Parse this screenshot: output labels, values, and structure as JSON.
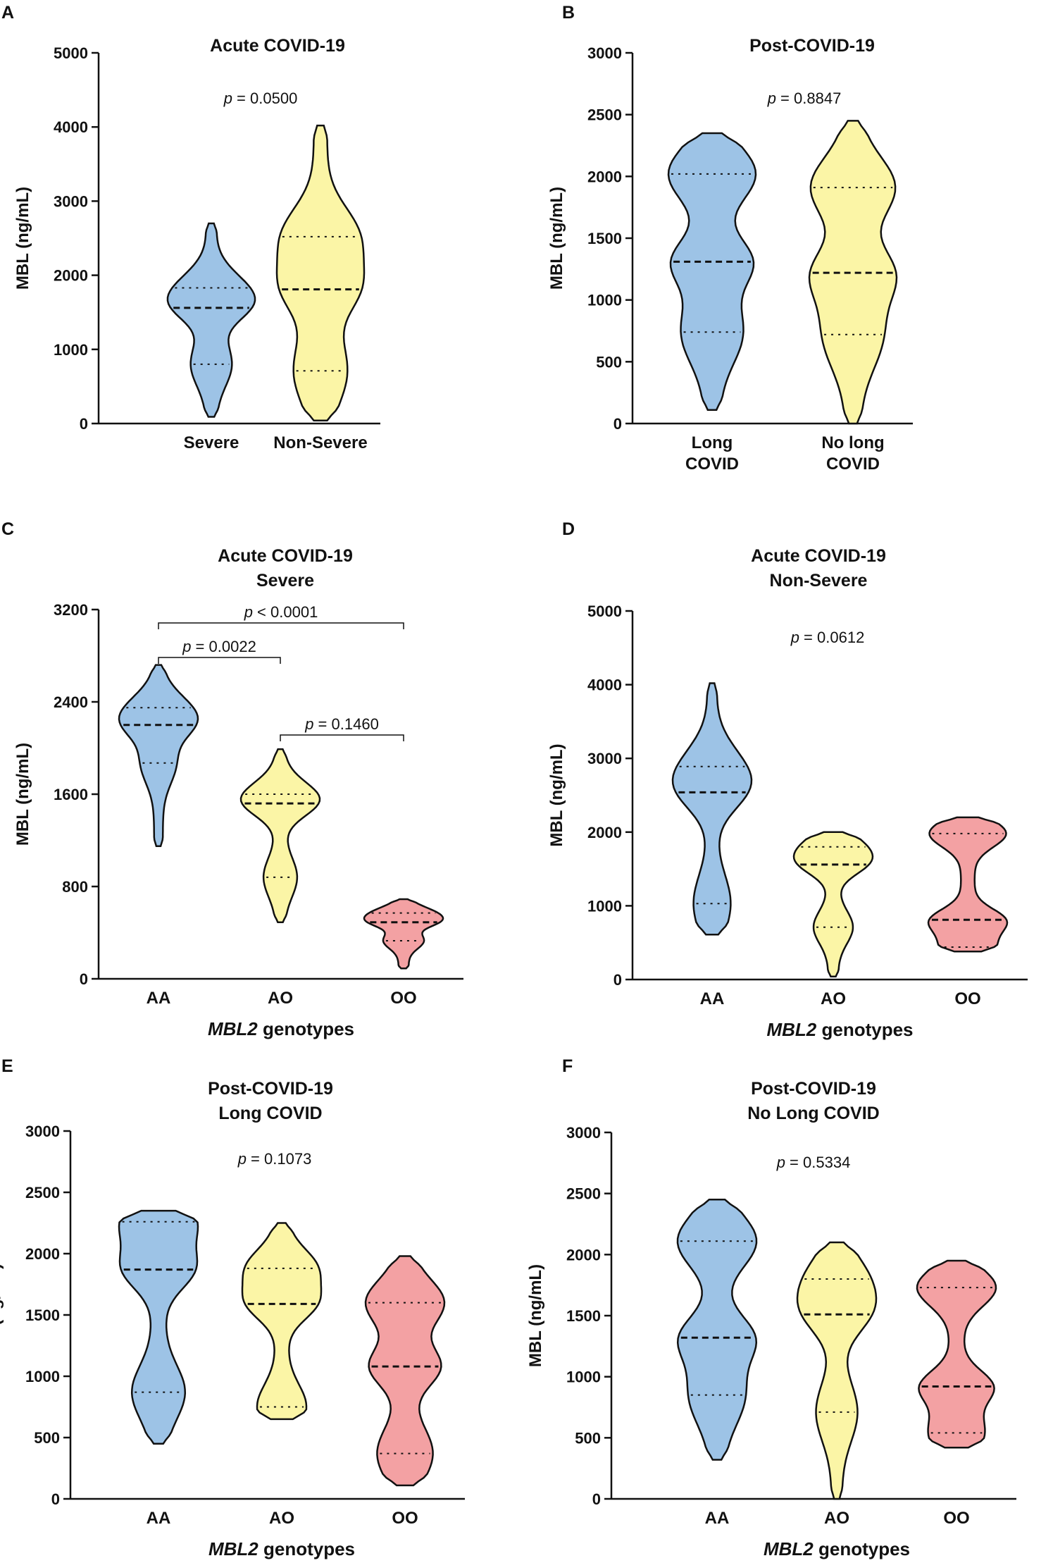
{
  "colors": {
    "blue": "#9dc3e6",
    "yellow": "#fbf5a6",
    "red": "#f3a1a3",
    "stroke": "#111111"
  },
  "chart_data": [
    {
      "type": "violin",
      "panel": "A",
      "title": "Acute COVID-19",
      "ylabel": "MBL (ng/mL)",
      "xlabel": "",
      "ylim": [
        0,
        5000
      ],
      "yticks": [
        "0",
        "1000",
        "2000",
        "3000",
        "4000",
        "5000"
      ],
      "categories": [
        "Severe",
        "Non-Severe"
      ],
      "series": [
        {
          "name": "Severe",
          "color": "blue",
          "min": 90,
          "max": 2700,
          "q1": 800,
          "median": 1560,
          "q3": 1830
        },
        {
          "name": "Non-Severe",
          "color": "yellow",
          "min": 40,
          "max": 4020,
          "q1": 710,
          "median": 1810,
          "q3": 2520
        }
      ],
      "pvalue": "p = 0.0500"
    },
    {
      "type": "violin",
      "panel": "B",
      "title": "Post-COVID-19",
      "ylabel": "MBL (ng/mL)",
      "xlabel": "",
      "ylim": [
        0,
        3000
      ],
      "yticks": [
        "0",
        "500",
        "1000",
        "1500",
        "2000",
        "2500",
        "3000"
      ],
      "categories": [
        "Long COVID",
        "No long COVID"
      ],
      "series": [
        {
          "name": "Long COVID",
          "color": "blue",
          "min": 110,
          "max": 2350,
          "q1": 740,
          "median": 1310,
          "q3": 2020
        },
        {
          "name": "No long COVID",
          "color": "yellow",
          "min": 0,
          "max": 2450,
          "q1": 720,
          "median": 1220,
          "q3": 1910
        }
      ],
      "pvalue": "p = 0.8847"
    },
    {
      "type": "violin",
      "panel": "C",
      "title": "Acute COVID-19",
      "subtitle": "Severe",
      "ylabel": "MBL (ng/mL)",
      "xlabel": "MBL2 genotypes",
      "ylim": [
        0,
        3200
      ],
      "yticks": [
        "0",
        "800",
        "1600",
        "2400",
        "3200"
      ],
      "categories": [
        "AA",
        "AO",
        "OO"
      ],
      "series": [
        {
          "name": "AA",
          "color": "blue",
          "min": 1150,
          "max": 2720,
          "q1": 1870,
          "median": 2200,
          "q3": 2350
        },
        {
          "name": "AO",
          "color": "yellow",
          "min": 490,
          "max": 1990,
          "q1": 880,
          "median": 1520,
          "q3": 1600
        },
        {
          "name": "OO",
          "color": "red",
          "min": 90,
          "max": 690,
          "q1": 330,
          "median": 490,
          "q3": 570
        }
      ],
      "comparisons": [
        {
          "pair": [
            "AA",
            "OO"
          ],
          "text": "p < 0.0001"
        },
        {
          "pair": [
            "AA",
            "AO"
          ],
          "text": "p = 0.0022"
        },
        {
          "pair": [
            "AO",
            "OO"
          ],
          "text": "p = 0.1460"
        }
      ]
    },
    {
      "type": "violin",
      "panel": "D",
      "title": "Acute COVID-19",
      "subtitle": "Non-Severe",
      "ylabel": "MBL (ng/mL)",
      "xlabel": "MBL2 genotypes",
      "ylim": [
        0,
        5000
      ],
      "yticks": [
        "0",
        "1000",
        "2000",
        "3000",
        "4000",
        "5000"
      ],
      "categories": [
        "AA",
        "AO",
        "OO"
      ],
      "series": [
        {
          "name": "AA",
          "color": "blue",
          "min": 610,
          "max": 4020,
          "q1": 1030,
          "median": 2540,
          "q3": 2890
        },
        {
          "name": "AO",
          "color": "yellow",
          "min": 40,
          "max": 2000,
          "q1": 710,
          "median": 1560,
          "q3": 1800
        },
        {
          "name": "OO",
          "color": "red",
          "min": 380,
          "max": 2200,
          "q1": 440,
          "median": 810,
          "q3": 1980
        }
      ],
      "pvalue": "p = 0.0612"
    },
    {
      "type": "violin",
      "panel": "E",
      "title": "Post-COVID-19",
      "subtitle": "Long COVID",
      "ylabel": "MBL (ng/mL)",
      "xlabel": "MBL2 genotypes",
      "ylim": [
        0,
        3000
      ],
      "yticks": [
        "0",
        "500",
        "1000",
        "1500",
        "2000",
        "2500",
        "3000"
      ],
      "categories": [
        "AA",
        "AO",
        "OO"
      ],
      "series": [
        {
          "name": "AA",
          "color": "blue",
          "min": 450,
          "max": 2350,
          "q1": 870,
          "median": 1870,
          "q3": 2260
        },
        {
          "name": "AO",
          "color": "yellow",
          "min": 650,
          "max": 2250,
          "q1": 750,
          "median": 1590,
          "q3": 1880
        },
        {
          "name": "OO",
          "color": "red",
          "min": 110,
          "max": 1980,
          "q1": 370,
          "median": 1080,
          "q3": 1600
        }
      ],
      "pvalue": "p = 0.1073"
    },
    {
      "type": "violin",
      "panel": "F",
      "title": "Post-COVID-19",
      "subtitle": "No Long COVID",
      "ylabel": "MBL (ng/mL)",
      "xlabel": "MBL2 genotypes",
      "ylim": [
        0,
        3000
      ],
      "yticks": [
        "0",
        "500",
        "1000",
        "1500",
        "2000",
        "2500",
        "3000"
      ],
      "categories": [
        "AA",
        "AO",
        "OO"
      ],
      "series": [
        {
          "name": "AA",
          "color": "blue",
          "min": 320,
          "max": 2450,
          "q1": 850,
          "median": 1320,
          "q3": 2110
        },
        {
          "name": "AO",
          "color": "yellow",
          "min": 0,
          "max": 2100,
          "q1": 710,
          "median": 1510,
          "q3": 1800
        },
        {
          "name": "OO",
          "color": "red",
          "min": 420,
          "max": 1950,
          "q1": 540,
          "median": 920,
          "q3": 1730
        }
      ],
      "pvalue": "p = 0.5334"
    }
  ]
}
